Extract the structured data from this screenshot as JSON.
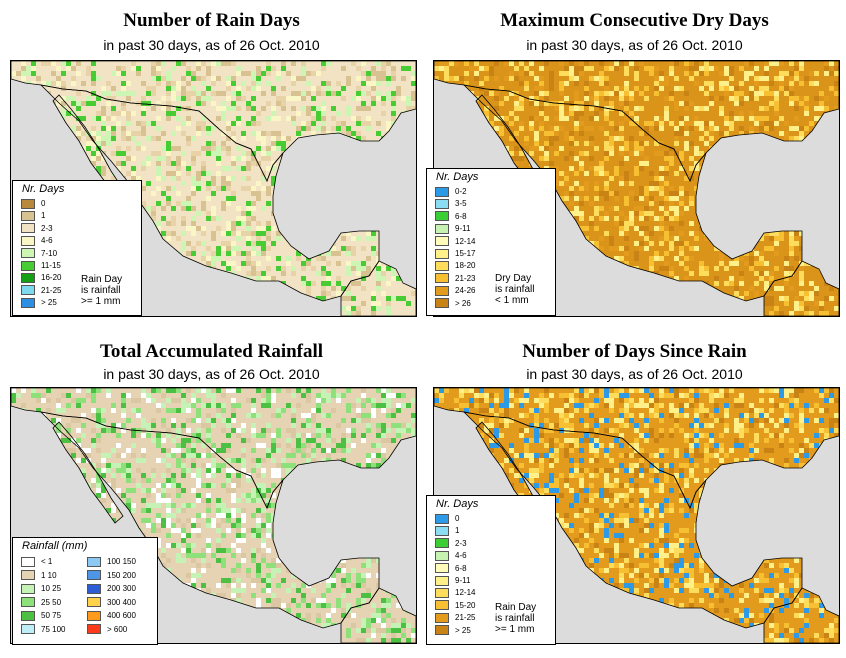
{
  "panels": [
    {
      "title": "Number of Rain Days",
      "subtitle": "in past 30 days, as of  26 Oct. 2010",
      "legend": {
        "title": "Nr. Days",
        "items": [
          {
            "label": "0",
            "color": "#b8893b"
          },
          {
            "label": "1",
            "color": "#d8c292"
          },
          {
            "label": "2-3",
            "color": "#f2e3c4"
          },
          {
            "label": "4-6",
            "color": "#fbf6c5"
          },
          {
            "label": "7-10",
            "color": "#cdf5b4"
          },
          {
            "label": "11-15",
            "color": "#47cc33"
          },
          {
            "label": "16-20",
            "color": "#14a014"
          },
          {
            "label": "21-25",
            "color": "#7ed9ec"
          },
          {
            "label": "> 25",
            "color": "#2d8ee2"
          }
        ]
      },
      "note": [
        "Rain Day",
        "is rainfall",
        ">= 1 mm"
      ],
      "palette": {
        "base": "#f2e3c4",
        "alt": [
          "#fbf6c5",
          "#d8c292",
          "#cdf5b4",
          "#47cc33",
          "#e8d3a8"
        ]
      }
    },
    {
      "title": "Maximum Consecutive Dry Days",
      "subtitle": "in past 30 days, as of  26 Oct. 2010",
      "legend": {
        "title": "Nr. Days",
        "items": [
          {
            "label": "0-2",
            "color": "#2d9ae8"
          },
          {
            "label": "3-5",
            "color": "#8cdcf3"
          },
          {
            "label": "6-8",
            "color": "#3ccf35"
          },
          {
            "label": "9-11",
            "color": "#c6f3b2"
          },
          {
            "label": "12-14",
            "color": "#fffbb8"
          },
          {
            "label": "15-17",
            "color": "#fff08a"
          },
          {
            "label": "18-20",
            "color": "#ffdd5c"
          },
          {
            "label": "21-23",
            "color": "#f7c033"
          },
          {
            "label": "24-26",
            "color": "#e39b1d"
          },
          {
            "label": "> 26",
            "color": "#c98314"
          }
        ]
      },
      "note": [
        "Dry Day",
        "is rainfall",
        "< 1 mm"
      ],
      "palette": {
        "base": "#d99419",
        "alt": [
          "#c98314",
          "#f7c033",
          "#ffdd5c",
          "#fff08a",
          "#e39b1d"
        ]
      }
    },
    {
      "title": "Total Accumulated Rainfall",
      "subtitle": "in past 30 days, as of  26 Oct. 2010",
      "legend": {
        "title": "Rainfall (mm)",
        "items": [
          {
            "label": "< 1",
            "color": "#ffffff"
          },
          {
            "label": "1   10",
            "color": "#e6d3b3"
          },
          {
            "label": "10   25",
            "color": "#c5f2b5"
          },
          {
            "label": "25   50",
            "color": "#8ee07a"
          },
          {
            "label": "50   75",
            "color": "#4cc043"
          },
          {
            "label": "75   100",
            "color": "#bfeef8"
          },
          {
            "label": "100  150",
            "color": "#8cc9f2"
          },
          {
            "label": "150  200",
            "color": "#4f95e6"
          },
          {
            "label": "200  300",
            "color": "#2c5cd6"
          },
          {
            "label": "300  400",
            "color": "#ffd24a"
          },
          {
            "label": "400  600",
            "color": "#ff9a1a"
          },
          {
            "label": "> 600",
            "color": "#ff3a1a"
          }
        ]
      },
      "palette": {
        "base": "#e6d3b3",
        "alt": [
          "#c5f2b5",
          "#8ee07a",
          "#ffffff",
          "#4cc043",
          "#dcc7a3"
        ]
      }
    },
    {
      "title": "Number of Days Since Rain",
      "subtitle": "in past 30 days, as of  26 Oct. 2010",
      "legend": {
        "title": "Nr. Days",
        "items": [
          {
            "label": "0",
            "color": "#2d9ae8"
          },
          {
            "label": "1",
            "color": "#8cdcf3"
          },
          {
            "label": "2-3",
            "color": "#3ccf35"
          },
          {
            "label": "4-6",
            "color": "#c6f3b2"
          },
          {
            "label": "6-8",
            "color": "#fffbb8"
          },
          {
            "label": "9-11",
            "color": "#fff08a"
          },
          {
            "label": "12-14",
            "color": "#ffdd5c"
          },
          {
            "label": "15-20",
            "color": "#f7c033"
          },
          {
            "label": "21-25",
            "color": "#e39b1d"
          },
          {
            "label": "> 25",
            "color": "#c98314"
          }
        ]
      },
      "note": [
        "Rain Day",
        "is rainfall",
        ">= 1 mm"
      ],
      "palette": {
        "base": "#e39b1d",
        "alt": [
          "#f7c033",
          "#c98314",
          "#fff08a",
          "#2d9ae8",
          "#ffdd5c"
        ]
      }
    }
  ],
  "colors": {
    "ocean": "#dcdcdc",
    "border": "#000000"
  }
}
